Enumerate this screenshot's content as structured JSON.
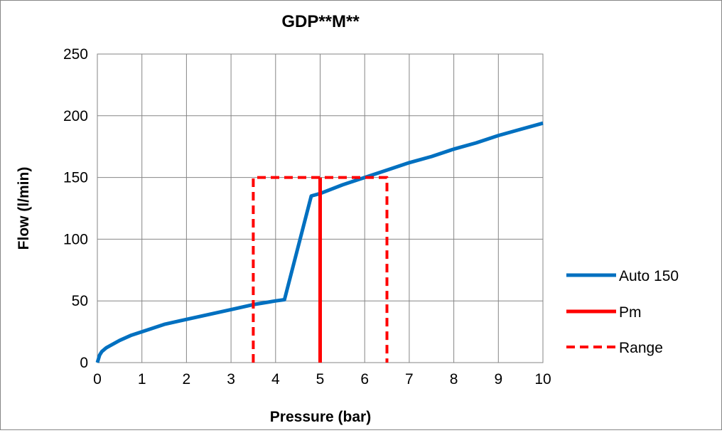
{
  "chart_data": {
    "type": "line",
    "title": "GDP**M**",
    "xlabel": "Pressure (bar)",
    "ylabel": "Flow (l/min)",
    "xlim": [
      0,
      10
    ],
    "ylim": [
      0,
      250
    ],
    "xticks": [
      0,
      1,
      2,
      3,
      4,
      5,
      6,
      7,
      8,
      9,
      10
    ],
    "yticks": [
      0,
      50,
      100,
      150,
      200,
      250
    ],
    "grid": true,
    "legend_position": "right",
    "series": [
      {
        "name": "Auto 150",
        "color": "#0070c0",
        "style": "solid",
        "x": [
          0,
          0.05,
          0.1,
          0.2,
          0.3,
          0.5,
          0.75,
          1.0,
          1.5,
          2.0,
          2.5,
          3.0,
          3.5,
          4.0,
          4.2,
          4.8,
          5.0,
          5.5,
          6.0,
          6.5,
          7.0,
          7.5,
          8.0,
          8.5,
          9.0,
          9.5,
          10.0
        ],
        "y": [
          0,
          6,
          9,
          12,
          14,
          18,
          22,
          25,
          31,
          35,
          39,
          43,
          47,
          50,
          51,
          135,
          137,
          144,
          150,
          156,
          162,
          167,
          173,
          178,
          184,
          189,
          194
        ]
      },
      {
        "name": "Pm",
        "color": "#ff0000",
        "style": "solid",
        "x": [
          5,
          5
        ],
        "y": [
          0,
          150
        ]
      },
      {
        "name": "Range",
        "color": "#ff0000",
        "style": "dashed",
        "x": [
          3.5,
          3.5,
          6.5,
          6.5
        ],
        "y": [
          0,
          150,
          150,
          0
        ]
      }
    ]
  }
}
